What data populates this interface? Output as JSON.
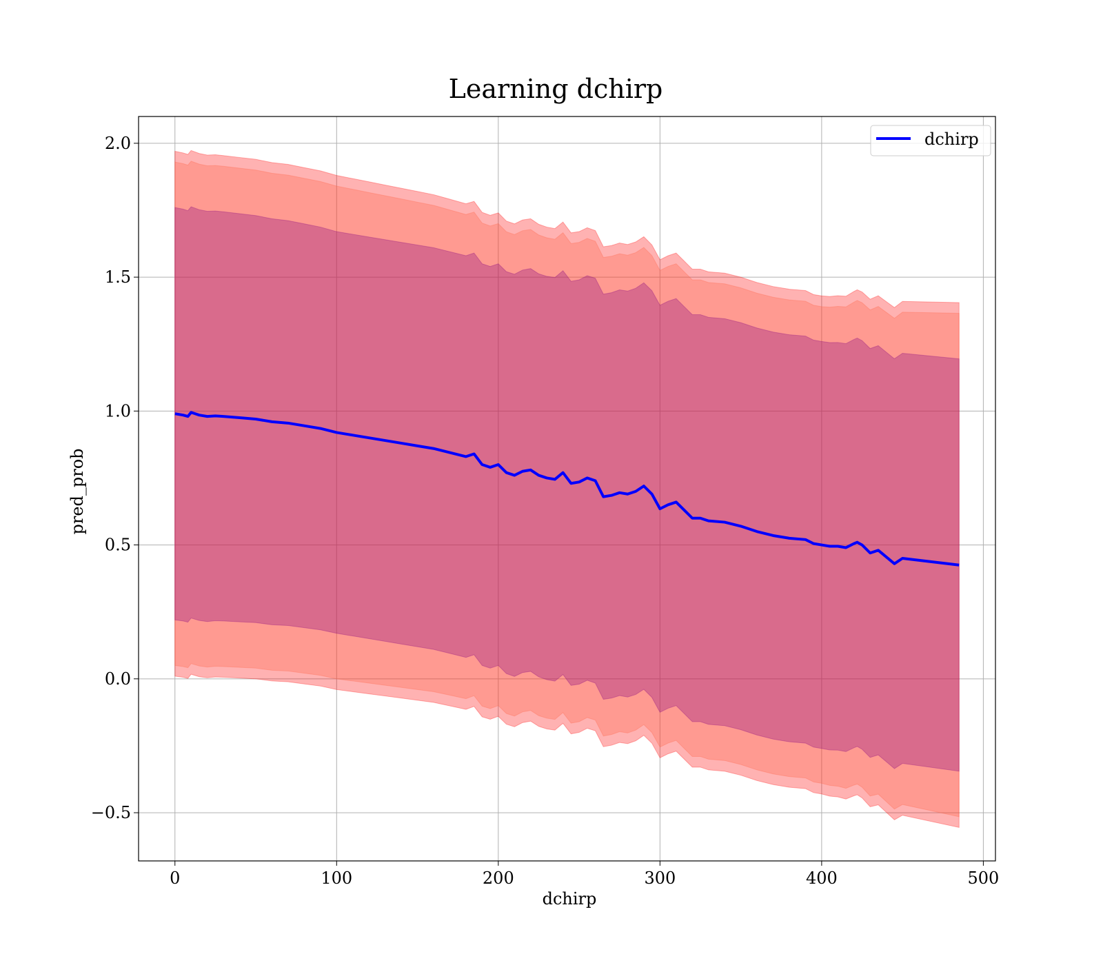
{
  "chart_data": {
    "type": "line",
    "title": "Learning dchirp",
    "xlabel": "dchirp",
    "ylabel": "pred_prob",
    "xlim": [
      -22.5,
      507.5
    ],
    "ylim": [
      -0.68,
      2.1
    ],
    "xticks": [
      0,
      100,
      200,
      300,
      400,
      500
    ],
    "xtick_labels": [
      "0",
      "100",
      "200",
      "300",
      "400",
      "500"
    ],
    "yticks": [
      -0.5,
      0.0,
      0.5,
      1.0,
      1.5,
      2.0
    ],
    "ytick_labels": [
      "−0.5",
      "0.0",
      "0.5",
      "1.0",
      "1.5",
      "2.0"
    ],
    "grid": true,
    "legend": {
      "placement": "top-right",
      "entries": [
        "dchirp"
      ]
    },
    "colors": {
      "line": "#0000ff",
      "band_outer": "#ff0000",
      "band_middle": "#ff6347",
      "band_inner": "#800080",
      "grid": "#b0b0b0",
      "axes": "#000000"
    },
    "series": [
      {
        "name": "dchirp",
        "x": [
          0,
          5,
          8,
          10,
          15,
          20,
          25,
          30,
          40,
          50,
          60,
          70,
          80,
          90,
          100,
          110,
          120,
          130,
          140,
          150,
          160,
          170,
          180,
          185,
          190,
          195,
          200,
          205,
          210,
          215,
          220,
          225,
          230,
          235,
          240,
          245,
          250,
          255,
          260,
          265,
          270,
          275,
          280,
          285,
          290,
          295,
          300,
          305,
          310,
          315,
          320,
          325,
          330,
          340,
          350,
          360,
          370,
          380,
          390,
          395,
          400,
          405,
          410,
          415,
          420,
          422,
          425,
          430,
          435,
          440,
          445,
          450,
          485
        ],
        "y": [
          0.99,
          0.985,
          0.98,
          0.995,
          0.985,
          0.98,
          0.982,
          0.98,
          0.975,
          0.97,
          0.96,
          0.955,
          0.945,
          0.935,
          0.92,
          0.91,
          0.9,
          0.89,
          0.88,
          0.87,
          0.86,
          0.845,
          0.83,
          0.84,
          0.8,
          0.79,
          0.8,
          0.77,
          0.76,
          0.775,
          0.78,
          0.76,
          0.75,
          0.745,
          0.77,
          0.73,
          0.735,
          0.75,
          0.74,
          0.68,
          0.685,
          0.695,
          0.69,
          0.7,
          0.72,
          0.69,
          0.635,
          0.65,
          0.66,
          0.63,
          0.6,
          0.6,
          0.59,
          0.585,
          0.57,
          0.55,
          0.535,
          0.525,
          0.52,
          0.505,
          0.5,
          0.495,
          0.495,
          0.49,
          0.505,
          0.51,
          0.5,
          0.47,
          0.48,
          0.455,
          0.43,
          0.45,
          0.425
        ]
      }
    ],
    "bands": [
      {
        "level": "outer",
        "color": "#ff0000",
        "opacity": 0.3,
        "half_widths": {
          "x": [
            0,
            100,
            200,
            300,
            400,
            485
          ],
          "y": [
            0.98,
            0.96,
            0.94,
            0.93,
            0.93,
            0.98
          ]
        }
      },
      {
        "level": "middle",
        "color": "#ff6347",
        "opacity": 0.3,
        "half_widths": {
          "x": [
            0,
            100,
            200,
            300,
            400,
            485
          ],
          "y": [
            0.94,
            0.92,
            0.9,
            0.89,
            0.89,
            0.94
          ]
        }
      },
      {
        "level": "inner",
        "color": "#800080",
        "opacity": 0.3,
        "half_widths": {
          "x": [
            0,
            100,
            200,
            300,
            400,
            485
          ],
          "y": [
            0.77,
            0.75,
            0.75,
            0.76,
            0.76,
            0.77
          ]
        }
      }
    ]
  }
}
